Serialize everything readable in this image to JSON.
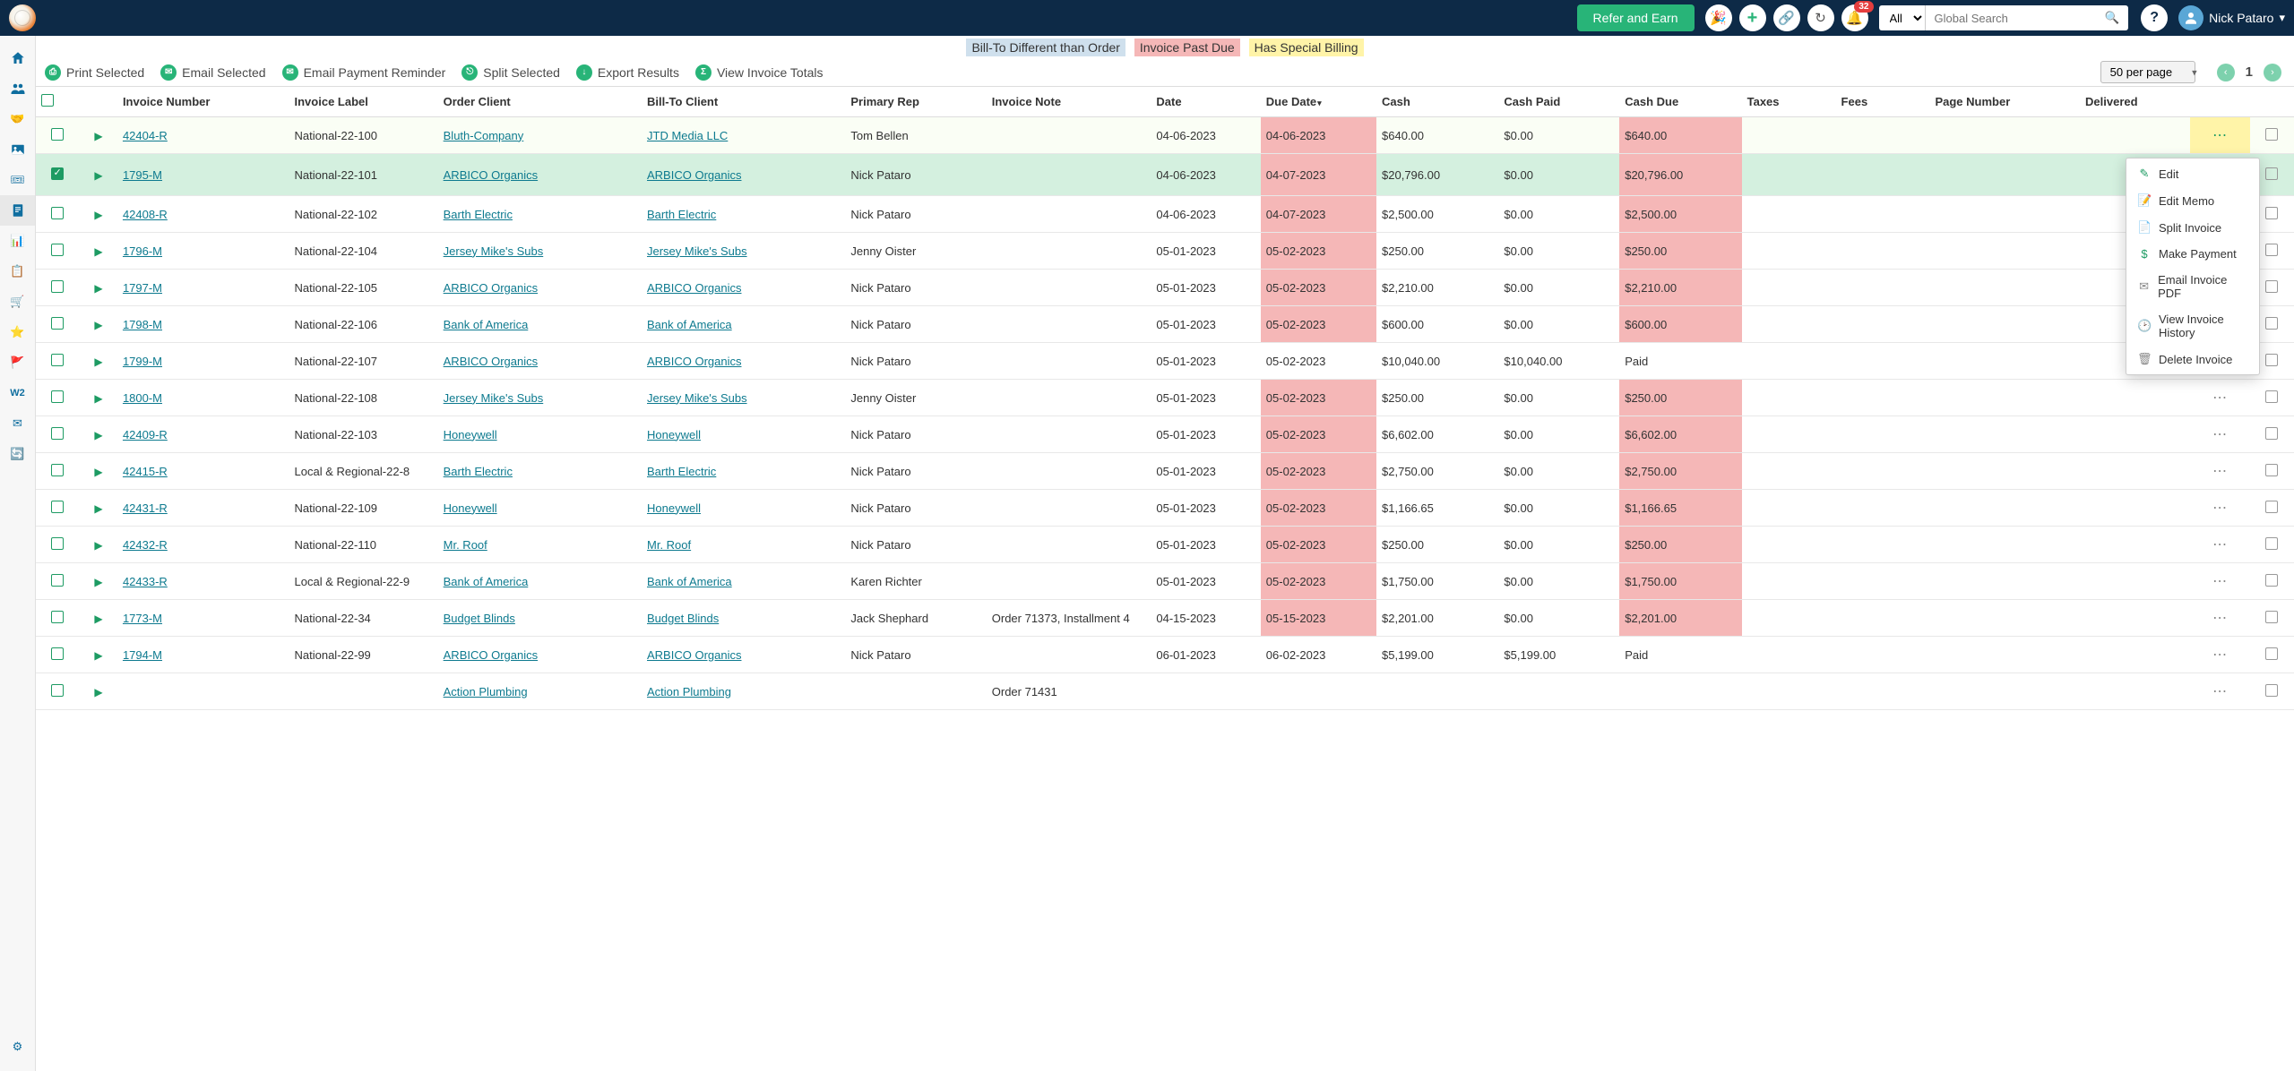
{
  "topbar": {
    "refer_label": "Refer and Earn",
    "notif_count": "32",
    "search_scope": "All",
    "search_placeholder": "Global Search",
    "username": "Nick Pataro"
  },
  "legend": {
    "billto": "Bill-To Different than Order",
    "pastdue": "Invoice Past Due",
    "special": "Has Special Billing"
  },
  "toolbar": {
    "print": "Print Selected",
    "email": "Email Selected",
    "reminder": "Email Payment Reminder",
    "split": "Split Selected",
    "export": "Export Results",
    "totals": "View Invoice Totals",
    "perpage": "50 per page",
    "page": "1"
  },
  "columns": {
    "invnum": "Invoice Number",
    "label": "Invoice Label",
    "client": "Order Client",
    "billto": "Bill-To Client",
    "rep": "Primary Rep",
    "note": "Invoice Note",
    "date": "Date",
    "due": "Due Date",
    "cash": "Cash",
    "paid": "Cash Paid",
    "cashdue": "Cash Due",
    "taxes": "Taxes",
    "fees": "Fees",
    "pagenum": "Page Number",
    "deliv": "Delivered"
  },
  "rows": [
    {
      "sel": false,
      "special": true,
      "invnum": "42404-R",
      "label": "National-22-100",
      "client": "Bluth-Company",
      "billto": "JTD Media LLC",
      "rep": "Tom Bellen",
      "note": "",
      "date": "04-06-2023",
      "due": "04-06-2023",
      "due_hl": true,
      "cash": "$640.00",
      "paid": "$0.00",
      "cashdue": "$640.00",
      "cashdue_hl": true,
      "paid_txt": ""
    },
    {
      "sel": true,
      "special": false,
      "invnum": "1795-M",
      "label": "National-22-101",
      "client": "ARBICO Organics",
      "billto": "ARBICO Organics",
      "rep": "Nick Pataro",
      "note": "",
      "date": "04-06-2023",
      "due": "04-07-2023",
      "due_hl": true,
      "cash": "$20,796.00",
      "paid": "$0.00",
      "cashdue": "$20,796.00",
      "cashdue_hl": true,
      "paid_txt": ""
    },
    {
      "sel": false,
      "special": false,
      "invnum": "42408-R",
      "label": "National-22-102",
      "client": "Barth Electric",
      "billto": "Barth Electric",
      "rep": "Nick Pataro",
      "note": "",
      "date": "04-06-2023",
      "due": "04-07-2023",
      "due_hl": true,
      "cash": "$2,500.00",
      "paid": "$0.00",
      "cashdue": "$2,500.00",
      "cashdue_hl": true,
      "paid_txt": ""
    },
    {
      "sel": false,
      "special": false,
      "invnum": "1796-M",
      "label": "National-22-104",
      "client": "Jersey Mike's Subs",
      "billto": "Jersey Mike's Subs",
      "rep": "Jenny Oister",
      "note": "",
      "date": "05-01-2023",
      "due": "05-02-2023",
      "due_hl": true,
      "cash": "$250.00",
      "paid": "$0.00",
      "cashdue": "$250.00",
      "cashdue_hl": true,
      "paid_txt": ""
    },
    {
      "sel": false,
      "special": false,
      "invnum": "1797-M",
      "label": "National-22-105",
      "client": "ARBICO Organics",
      "billto": "ARBICO Organics",
      "rep": "Nick Pataro",
      "note": "",
      "date": "05-01-2023",
      "due": "05-02-2023",
      "due_hl": true,
      "cash": "$2,210.00",
      "paid": "$0.00",
      "cashdue": "$2,210.00",
      "cashdue_hl": true,
      "paid_txt": ""
    },
    {
      "sel": false,
      "special": false,
      "invnum": "1798-M",
      "label": "National-22-106",
      "client": "Bank of America",
      "billto": "Bank of America",
      "rep": "Nick Pataro",
      "note": "",
      "date": "05-01-2023",
      "due": "05-02-2023",
      "due_hl": true,
      "cash": "$600.00",
      "paid": "$0.00",
      "cashdue": "$600.00",
      "cashdue_hl": true,
      "paid_txt": ""
    },
    {
      "sel": false,
      "special": false,
      "invnum": "1799-M",
      "label": "National-22-107",
      "client": "ARBICO Organics",
      "billto": "ARBICO Organics",
      "rep": "Nick Pataro",
      "note": "",
      "date": "05-01-2023",
      "due": "05-02-2023",
      "due_hl": false,
      "cash": "$10,040.00",
      "paid": "$10,040.00",
      "cashdue": "Paid",
      "cashdue_hl": false,
      "paid_txt": ""
    },
    {
      "sel": false,
      "special": false,
      "invnum": "1800-M",
      "label": "National-22-108",
      "client": "Jersey Mike's Subs",
      "billto": "Jersey Mike's Subs",
      "rep": "Jenny Oister",
      "note": "",
      "date": "05-01-2023",
      "due": "05-02-2023",
      "due_hl": true,
      "cash": "$250.00",
      "paid": "$0.00",
      "cashdue": "$250.00",
      "cashdue_hl": true,
      "paid_txt": ""
    },
    {
      "sel": false,
      "special": false,
      "invnum": "42409-R",
      "label": "National-22-103",
      "client": "Honeywell",
      "billto": "Honeywell",
      "rep": "Nick Pataro",
      "note": "",
      "date": "05-01-2023",
      "due": "05-02-2023",
      "due_hl": true,
      "cash": "$6,602.00",
      "paid": "$0.00",
      "cashdue": "$6,602.00",
      "cashdue_hl": true,
      "paid_txt": ""
    },
    {
      "sel": false,
      "special": false,
      "invnum": "42415-R",
      "label": "Local & Regional-22-8",
      "client": "Barth Electric",
      "billto": "Barth Electric",
      "rep": "Nick Pataro",
      "note": "",
      "date": "05-01-2023",
      "due": "05-02-2023",
      "due_hl": true,
      "cash": "$2,750.00",
      "paid": "$0.00",
      "cashdue": "$2,750.00",
      "cashdue_hl": true,
      "paid_txt": ""
    },
    {
      "sel": false,
      "special": false,
      "invnum": "42431-R",
      "label": "National-22-109",
      "client": "Honeywell",
      "billto": "Honeywell",
      "rep": "Nick Pataro",
      "note": "",
      "date": "05-01-2023",
      "due": "05-02-2023",
      "due_hl": true,
      "cash": "$1,166.65",
      "paid": "$0.00",
      "cashdue": "$1,166.65",
      "cashdue_hl": true,
      "paid_txt": ""
    },
    {
      "sel": false,
      "special": false,
      "invnum": "42432-R",
      "label": "National-22-110",
      "client": "Mr. Roof",
      "billto": "Mr. Roof",
      "rep": "Nick Pataro",
      "note": "",
      "date": "05-01-2023",
      "due": "05-02-2023",
      "due_hl": true,
      "cash": "$250.00",
      "paid": "$0.00",
      "cashdue": "$250.00",
      "cashdue_hl": true,
      "paid_txt": ""
    },
    {
      "sel": false,
      "special": false,
      "invnum": "42433-R",
      "label": "Local & Regional-22-9",
      "client": "Bank of America",
      "billto": "Bank of America",
      "rep": "Karen Richter",
      "note": "",
      "date": "05-01-2023",
      "due": "05-02-2023",
      "due_hl": true,
      "cash": "$1,750.00",
      "paid": "$0.00",
      "cashdue": "$1,750.00",
      "cashdue_hl": true,
      "paid_txt": ""
    },
    {
      "sel": false,
      "special": false,
      "invnum": "1773-M",
      "label": "National-22-34",
      "client": "Budget Blinds",
      "billto": "Budget Blinds",
      "rep": "Jack Shephard",
      "note": "Order 71373, Installment 4",
      "date": "04-15-2023",
      "due": "05-15-2023",
      "due_hl": true,
      "cash": "$2,201.00",
      "paid": "$0.00",
      "cashdue": "$2,201.00",
      "cashdue_hl": true,
      "paid_txt": ""
    },
    {
      "sel": false,
      "special": false,
      "invnum": "1794-M",
      "label": "National-22-99",
      "client": "ARBICO Organics",
      "billto": "ARBICO Organics",
      "rep": "Nick Pataro",
      "note": "",
      "date": "06-01-2023",
      "due": "06-02-2023",
      "due_hl": false,
      "cash": "$5,199.00",
      "paid": "$5,199.00",
      "cashdue": "Paid",
      "cashdue_hl": false,
      "paid_txt": ""
    },
    {
      "sel": false,
      "special": false,
      "invnum": "",
      "label": "",
      "client": "Action Plumbing",
      "billto": "Action Plumbing",
      "rep": "",
      "note": "Order 71431",
      "date": "",
      "due": "",
      "due_hl": false,
      "cash": "",
      "paid": "",
      "cashdue": "",
      "cashdue_hl": false,
      "paid_txt": ""
    }
  ],
  "ctx": {
    "edit": "Edit",
    "memo": "Edit Memo",
    "split": "Split Invoice",
    "pay": "Make Payment",
    "pdf": "Email Invoice PDF",
    "history": "View Invoice History",
    "delete": "Delete Invoice"
  },
  "style": {
    "topbar_bg": "#0d2a47",
    "accent_green": "#28b478",
    "link_color": "#0d7a8f",
    "pastdue_bg": "#f5b7b7",
    "billto_bg": "#cfe0ed",
    "special_bg": "#fff4a8",
    "sel_row_bg": "#d4f0df",
    "notif_red": "#e53e3e"
  }
}
